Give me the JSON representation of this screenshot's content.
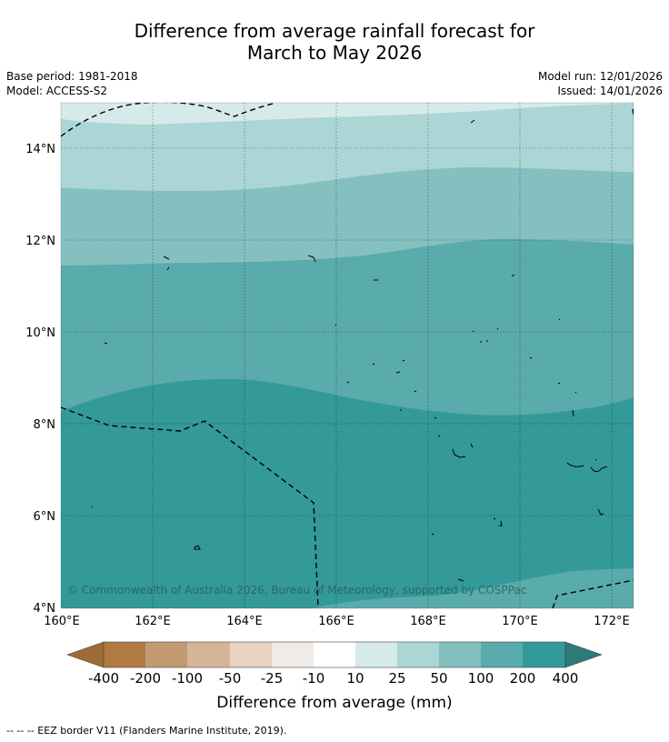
{
  "title": {
    "line1": "Difference from average rainfall forecast for",
    "line2": "March to May 2026"
  },
  "meta": {
    "base_period": "Base period: 1981-2018",
    "model": "Model: ACCESS-S2",
    "model_run": "Model run: 12/01/2026",
    "issued": "Issued: 14/01/2026"
  },
  "map": {
    "copyright": "© Commonwealth of Australia 2026, Bureau of Meteorology, supported by COSPPac",
    "lat_labels": [
      "14°N",
      "12°N",
      "10°N",
      "8°N",
      "6°N",
      "4°N"
    ],
    "lon_labels": [
      "160°E",
      "162°E",
      "164°E",
      "166°E",
      "168°E",
      "170°E",
      "172°E"
    ]
  },
  "legend": {
    "title": "Difference from average (mm)",
    "tick_labels": [
      "-400",
      "-200",
      "-100",
      "-50",
      "-25",
      "-10",
      "10",
      "25",
      "50",
      "100",
      "200",
      "400"
    ],
    "colors": [
      "#9e6a35",
      "#b07a42",
      "#c29a71",
      "#d5b597",
      "#e8d2c1",
      "#f0ebe7",
      "#ffffff",
      "#d7eaea",
      "#acd5d5",
      "#84c0c0",
      "#5aabab",
      "#339999",
      "#2b7b7b"
    ]
  },
  "footer": {
    "eez_note": "--  --  -- EEZ border V11 (Flanders Marine Institute, 2019)."
  }
}
